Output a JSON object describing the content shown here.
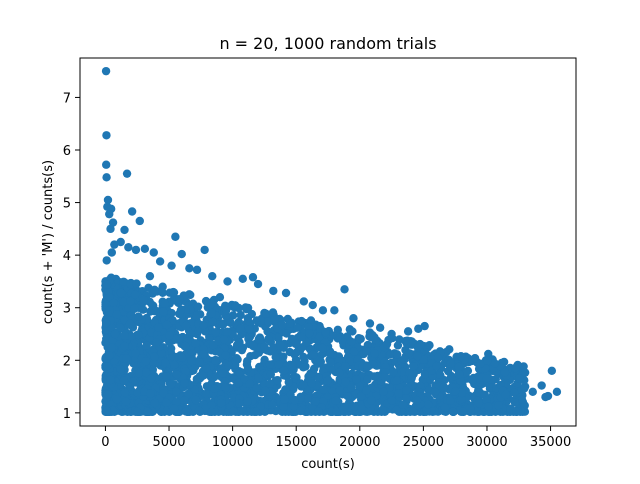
{
  "chart_data": {
    "type": "scatter",
    "title": "n = 20, 1000 random trials",
    "xlabel": "count(s)",
    "ylabel": "count(s + 'M') / counts(s)",
    "xlim": [
      -2000,
      37000
    ],
    "ylim": [
      0.75,
      7.75
    ],
    "xticks": [
      0,
      5000,
      10000,
      15000,
      20000,
      25000,
      30000,
      35000
    ],
    "yticks": [
      1,
      2,
      3,
      4,
      5,
      6,
      7
    ],
    "grid": false,
    "legend": "none",
    "marker_color": "#1f77b4",
    "series": [
      {
        "points": [
          [
            50,
            7.5
          ],
          [
            80,
            6.28
          ],
          [
            60,
            5.72
          ],
          [
            90,
            5.48
          ],
          [
            200,
            5.05
          ],
          [
            150,
            4.92
          ],
          [
            450,
            4.88
          ],
          [
            300,
            4.78
          ],
          [
            600,
            4.62
          ],
          [
            400,
            4.5
          ],
          [
            1500,
            4.48
          ],
          [
            2100,
            4.83
          ],
          [
            2700,
            4.65
          ],
          [
            1700,
            5.55
          ],
          [
            700,
            4.2
          ],
          [
            500,
            4.05
          ],
          [
            1200,
            4.25
          ],
          [
            1800,
            4.15
          ],
          [
            2400,
            4.1
          ],
          [
            3100,
            4.12
          ],
          [
            3800,
            4.05
          ],
          [
            5500,
            4.35
          ],
          [
            6000,
            4.02
          ],
          [
            7800,
            4.1
          ],
          [
            4300,
            3.88
          ],
          [
            5200,
            3.8
          ],
          [
            6600,
            3.75
          ],
          [
            7200,
            3.72
          ],
          [
            8400,
            3.6
          ],
          [
            9600,
            3.5
          ],
          [
            10800,
            3.55
          ],
          [
            11600,
            3.58
          ],
          [
            12000,
            3.45
          ],
          [
            13200,
            3.32
          ],
          [
            14200,
            3.28
          ],
          [
            15600,
            3.12
          ],
          [
            16300,
            3.05
          ],
          [
            17100,
            2.95
          ],
          [
            18000,
            2.95
          ],
          [
            18800,
            3.35
          ],
          [
            19500,
            2.8
          ],
          [
            20800,
            2.7
          ],
          [
            21600,
            2.62
          ],
          [
            22500,
            2.5
          ],
          [
            23800,
            2.55
          ],
          [
            24600,
            2.6
          ],
          [
            25100,
            2.65
          ],
          [
            24000,
            2.3
          ],
          [
            24800,
            2.2
          ],
          [
            25800,
            2.1
          ],
          [
            26700,
            1.95
          ],
          [
            27600,
            1.85
          ],
          [
            28500,
            1.8
          ],
          [
            29600,
            1.75
          ],
          [
            30100,
            2.12
          ],
          [
            30300,
            1.95
          ],
          [
            31000,
            1.75
          ],
          [
            31600,
            1.72
          ],
          [
            32200,
            1.7
          ],
          [
            32400,
            1.55
          ],
          [
            31800,
            1.45
          ],
          [
            32800,
            1.45
          ],
          [
            33600,
            1.4
          ],
          [
            34300,
            1.52
          ],
          [
            34800,
            1.32
          ],
          [
            35100,
            1.8
          ],
          [
            35500,
            1.4
          ],
          [
            29000,
            1.55
          ],
          [
            30500,
            1.4
          ],
          [
            28000,
            1.5
          ],
          [
            27000,
            1.45
          ],
          [
            26000,
            1.35
          ],
          [
            25500,
            1.25
          ],
          [
            26800,
            1.25
          ],
          [
            30000,
            1.25
          ],
          [
            29300,
            1.4
          ],
          [
            27400,
            1.3
          ],
          [
            23800,
            1.45
          ],
          [
            22600,
            1.55
          ],
          [
            21700,
            1.6
          ],
          [
            23000,
            1.2
          ],
          [
            22000,
            1.15
          ],
          [
            21000,
            1.1
          ],
          [
            20000,
            1.1
          ],
          [
            19000,
            1.12
          ],
          [
            18000,
            1.1
          ],
          [
            17000,
            1.05
          ],
          [
            16000,
            1.1
          ],
          [
            15000,
            1.05
          ],
          [
            14000,
            1.1
          ],
          [
            13000,
            1.05
          ],
          [
            12000,
            1.1
          ],
          [
            11000,
            1.05
          ],
          [
            10000,
            1.08
          ],
          [
            9000,
            1.05
          ],
          [
            8000,
            1.1
          ],
          [
            7000,
            1.05
          ],
          [
            6000,
            1.08
          ],
          [
            5000,
            1.05
          ],
          [
            4000,
            1.1
          ],
          [
            3000,
            1.05
          ],
          [
            2000,
            1.08
          ],
          [
            1000,
            1.05
          ],
          [
            500,
            1.02
          ],
          [
            100,
            1.02
          ],
          [
            250,
            1.5
          ],
          [
            150,
            2.0
          ],
          [
            80,
            2.5
          ],
          [
            120,
            3.0
          ],
          [
            100,
            3.9
          ],
          [
            700,
            3.5
          ],
          [
            1300,
            3.2
          ],
          [
            2000,
            2.9
          ],
          [
            3500,
            3.6
          ],
          [
            4500,
            3.4
          ],
          [
            5800,
            3.1
          ],
          [
            7000,
            2.9
          ],
          [
            8200,
            3.0
          ],
          [
            9000,
            3.2
          ],
          [
            10200,
            3.0
          ],
          [
            11200,
            2.8
          ],
          [
            12500,
            2.9
          ],
          [
            13600,
            2.7
          ],
          [
            14800,
            2.6
          ],
          [
            15800,
            2.5
          ],
          [
            16800,
            2.3
          ],
          [
            17600,
            2.4
          ],
          [
            19000,
            2.45
          ],
          [
            20200,
            2.2
          ],
          [
            21200,
            2.3
          ],
          [
            22200,
            2.1
          ],
          [
            23300,
            2.0
          ],
          [
            24200,
            1.9
          ],
          [
            25300,
            1.85
          ],
          [
            26200,
            1.75
          ],
          [
            27200,
            1.7
          ],
          [
            28400,
            1.65
          ],
          [
            20500,
            1.9
          ],
          [
            19200,
            2.0
          ],
          [
            18000,
            2.1
          ],
          [
            16500,
            2.0
          ],
          [
            15200,
            2.2
          ],
          [
            14000,
            2.3
          ],
          [
            12800,
            2.4
          ],
          [
            11500,
            2.5
          ],
          [
            10400,
            2.6
          ],
          [
            9300,
            2.7
          ],
          [
            8200,
            2.6
          ],
          [
            7200,
            2.5
          ],
          [
            6200,
            2.7
          ],
          [
            5200,
            2.6
          ],
          [
            4200,
            2.8
          ],
          [
            3200,
            2.5
          ],
          [
            2200,
            2.4
          ],
          [
            1200,
            2.6
          ],
          [
            600,
            2.2
          ],
          [
            900,
            1.8
          ],
          [
            1600,
            1.6
          ],
          [
            2500,
            1.9
          ],
          [
            3400,
            1.7
          ],
          [
            4400,
            1.5
          ],
          [
            5400,
            1.9
          ],
          [
            6400,
            1.6
          ],
          [
            7400,
            1.4
          ],
          [
            8400,
            1.8
          ],
          [
            9400,
            1.5
          ],
          [
            10400,
            1.7
          ],
          [
            11400,
            1.4
          ],
          [
            12400,
            1.6
          ],
          [
            13400,
            1.3
          ],
          [
            14400,
            1.8
          ],
          [
            15400,
            1.5
          ],
          [
            16400,
            1.7
          ],
          [
            17400,
            1.4
          ],
          [
            18400,
            1.6
          ],
          [
            19400,
            1.3
          ],
          [
            20400,
            1.5
          ],
          [
            21400,
            1.4
          ],
          [
            22400,
            1.3
          ],
          [
            23400,
            1.6
          ],
          [
            24400,
            1.5
          ],
          [
            25400,
            1.6
          ],
          [
            26400,
            1.5
          ],
          [
            28200,
            1.2
          ],
          [
            31200,
            1.3
          ],
          [
            33000,
            1.5
          ],
          [
            34600,
            1.3
          ]
        ]
      }
    ]
  }
}
